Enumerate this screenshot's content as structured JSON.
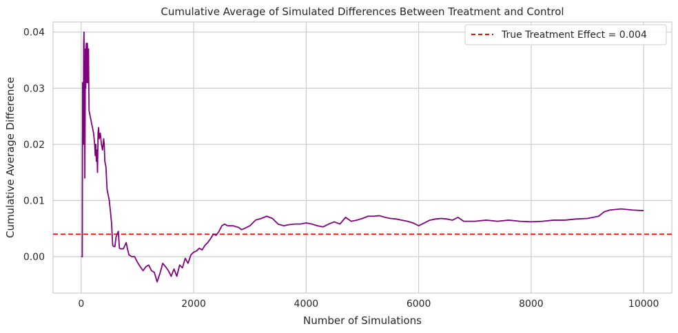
{
  "chart_data": {
    "type": "line",
    "title": "Cumulative Average of Simulated Differences Between Treatment and Control",
    "xlabel": "Number of Simulations",
    "ylabel": "Cumulative Average Difference",
    "xlim": [
      -500,
      10500
    ],
    "ylim": [
      -0.0065,
      0.0418
    ],
    "xticks": [
      0,
      2000,
      4000,
      6000,
      8000,
      10000
    ],
    "xtick_labels": [
      "0",
      "2000",
      "4000",
      "6000",
      "8000",
      "10000"
    ],
    "yticks": [
      0.0,
      0.01,
      0.02,
      0.03,
      0.04
    ],
    "ytick_labels": [
      "0.00",
      "0.01",
      "0.02",
      "0.03",
      "0.04"
    ],
    "grid": true,
    "legend_position": "top-right",
    "series": [
      {
        "name": "",
        "color": "#800080",
        "points": [
          [
            0,
            0.0
          ],
          [
            10,
            0.0
          ],
          [
            20,
            0.0
          ],
          [
            25,
            0.031
          ],
          [
            30,
            0.022
          ],
          [
            35,
            0.03
          ],
          [
            40,
            0.02
          ],
          [
            45,
            0.038
          ],
          [
            50,
            0.04
          ],
          [
            55,
            0.027
          ],
          [
            60,
            0.033
          ],
          [
            65,
            0.014
          ],
          [
            70,
            0.025
          ],
          [
            75,
            0.037
          ],
          [
            80,
            0.03
          ],
          [
            85,
            0.033
          ],
          [
            90,
            0.038
          ],
          [
            95,
            0.031
          ],
          [
            100,
            0.037
          ],
          [
            105,
            0.034
          ],
          [
            110,
            0.038
          ],
          [
            115,
            0.031
          ],
          [
            120,
            0.036
          ],
          [
            125,
            0.033
          ],
          [
            130,
            0.037
          ],
          [
            135,
            0.031
          ],
          [
            140,
            0.026
          ],
          [
            160,
            0.025
          ],
          [
            180,
            0.024
          ],
          [
            200,
            0.023
          ],
          [
            220,
            0.022
          ],
          [
            240,
            0.02
          ],
          [
            250,
            0.018
          ],
          [
            260,
            0.02
          ],
          [
            270,
            0.017
          ],
          [
            280,
            0.019
          ],
          [
            290,
            0.015
          ],
          [
            300,
            0.022
          ],
          [
            310,
            0.023
          ],
          [
            320,
            0.021
          ],
          [
            340,
            0.022
          ],
          [
            360,
            0.02
          ],
          [
            380,
            0.019
          ],
          [
            400,
            0.021
          ],
          [
            410,
            0.02
          ],
          [
            420,
            0.017
          ],
          [
            440,
            0.016
          ],
          [
            460,
            0.012
          ],
          [
            480,
            0.011
          ],
          [
            500,
            0.01
          ],
          [
            520,
            0.008
          ],
          [
            540,
            0.006
          ],
          [
            560,
            0.002
          ],
          [
            580,
            0.0018
          ],
          [
            600,
            0.0018
          ],
          [
            620,
            0.0035
          ],
          [
            640,
            0.004
          ],
          [
            660,
            0.0045
          ],
          [
            680,
            0.0015
          ],
          [
            700,
            0.0014
          ],
          [
            750,
            0.0014
          ],
          [
            800,
            0.0025
          ],
          [
            820,
            0.0015
          ],
          [
            850,
            0.0003
          ],
          [
            900,
            0.0
          ],
          [
            950,
            0.0
          ],
          [
            1000,
            -0.001
          ],
          [
            1050,
            -0.0018
          ],
          [
            1100,
            -0.0025
          ],
          [
            1150,
            -0.0018
          ],
          [
            1200,
            -0.0015
          ],
          [
            1250,
            -0.0025
          ],
          [
            1300,
            -0.0028
          ],
          [
            1350,
            -0.0045
          ],
          [
            1400,
            -0.003
          ],
          [
            1450,
            -0.0012
          ],
          [
            1500,
            -0.0018
          ],
          [
            1550,
            -0.0025
          ],
          [
            1600,
            -0.0035
          ],
          [
            1650,
            -0.0022
          ],
          [
            1700,
            -0.0035
          ],
          [
            1750,
            -0.0015
          ],
          [
            1800,
            -0.002
          ],
          [
            1850,
            -0.0003
          ],
          [
            1900,
            -0.0012
          ],
          [
            1950,
            0.0003
          ],
          [
            2000,
            0.0008
          ],
          [
            2050,
            0.001
          ],
          [
            2100,
            0.0015
          ],
          [
            2150,
            0.0012
          ],
          [
            2200,
            0.002
          ],
          [
            2250,
            0.0025
          ],
          [
            2300,
            0.0032
          ],
          [
            2350,
            0.004
          ],
          [
            2400,
            0.0038
          ],
          [
            2450,
            0.0045
          ],
          [
            2500,
            0.0055
          ],
          [
            2550,
            0.0058
          ],
          [
            2600,
            0.0055
          ],
          [
            2700,
            0.0055
          ],
          [
            2800,
            0.0052
          ],
          [
            2850,
            0.0048
          ],
          [
            2900,
            0.005
          ],
          [
            3000,
            0.0055
          ],
          [
            3100,
            0.0065
          ],
          [
            3200,
            0.0068
          ],
          [
            3300,
            0.0072
          ],
          [
            3400,
            0.0068
          ],
          [
            3500,
            0.0058
          ],
          [
            3600,
            0.0055
          ],
          [
            3700,
            0.0057
          ],
          [
            3800,
            0.0058
          ],
          [
            3900,
            0.0058
          ],
          [
            4000,
            0.006
          ],
          [
            4100,
            0.0058
          ],
          [
            4200,
            0.0055
          ],
          [
            4300,
            0.0053
          ],
          [
            4400,
            0.0058
          ],
          [
            4500,
            0.0062
          ],
          [
            4600,
            0.0058
          ],
          [
            4700,
            0.007
          ],
          [
            4800,
            0.0063
          ],
          [
            4900,
            0.0065
          ],
          [
            5000,
            0.0068
          ],
          [
            5100,
            0.0072
          ],
          [
            5200,
            0.0072
          ],
          [
            5300,
            0.0073
          ],
          [
            5400,
            0.007
          ],
          [
            5500,
            0.0068
          ],
          [
            5600,
            0.0067
          ],
          [
            5700,
            0.0065
          ],
          [
            5800,
            0.0063
          ],
          [
            5900,
            0.006
          ],
          [
            6000,
            0.0055
          ],
          [
            6100,
            0.006
          ],
          [
            6200,
            0.0065
          ],
          [
            6300,
            0.0067
          ],
          [
            6400,
            0.0068
          ],
          [
            6500,
            0.0067
          ],
          [
            6600,
            0.0065
          ],
          [
            6700,
            0.007
          ],
          [
            6800,
            0.0063
          ],
          [
            6900,
            0.0063
          ],
          [
            7000,
            0.0063
          ],
          [
            7200,
            0.0065
          ],
          [
            7400,
            0.0063
          ],
          [
            7600,
            0.0065
          ],
          [
            7800,
            0.0063
          ],
          [
            8000,
            0.0062
          ],
          [
            8200,
            0.0063
          ],
          [
            8400,
            0.0065
          ],
          [
            8600,
            0.0065
          ],
          [
            8800,
            0.0067
          ],
          [
            9000,
            0.0068
          ],
          [
            9200,
            0.0072
          ],
          [
            9300,
            0.008
          ],
          [
            9400,
            0.0083
          ],
          [
            9600,
            0.0085
          ],
          [
            9800,
            0.0083
          ],
          [
            10000,
            0.0082
          ]
        ]
      }
    ],
    "reference_lines": [
      {
        "orientation": "horizontal",
        "y": 0.004,
        "label": "True Treatment Effect = 0.004",
        "color": "#ff0000",
        "style": "dashed"
      }
    ]
  }
}
